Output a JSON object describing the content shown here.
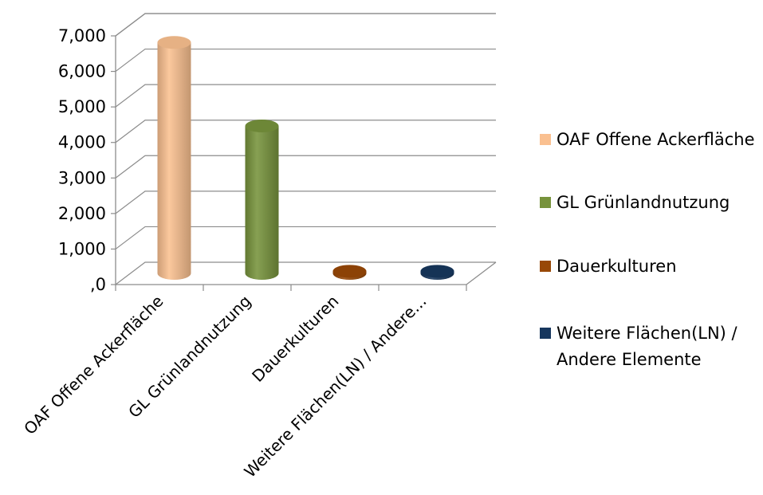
{
  "chart_data": {
    "type": "bar",
    "style": "3d-cylinder",
    "title": "",
    "xlabel": "",
    "ylabel": "",
    "categories": [
      "OAF Offene Ackerfläche",
      "GL Grünlandnutzung",
      "Dauerkulturen",
      "Weitere Flächen(LN) / Andere..."
    ],
    "values": [
      6500,
      4150,
      60,
      60
    ],
    "colors": [
      "#FAC090",
      "#77933C",
      "#984807",
      "#17375E"
    ],
    "ylim": [
      0,
      7000
    ],
    "yticks": [
      0,
      1000,
      2000,
      3000,
      4000,
      5000,
      6000,
      7000
    ],
    "ytick_labels": [
      ",0",
      "1,000",
      "2,000",
      "3,000",
      "4,000",
      "5,000",
      "6,000",
      "7,000"
    ],
    "grid": true,
    "legend": {
      "position": "right",
      "entries": [
        "OAF Offene Ackerfläche",
        "GL Grünlandnutzung",
        "Dauerkulturen",
        "Weitere Flächen(LN) / Andere Elemente"
      ]
    }
  }
}
